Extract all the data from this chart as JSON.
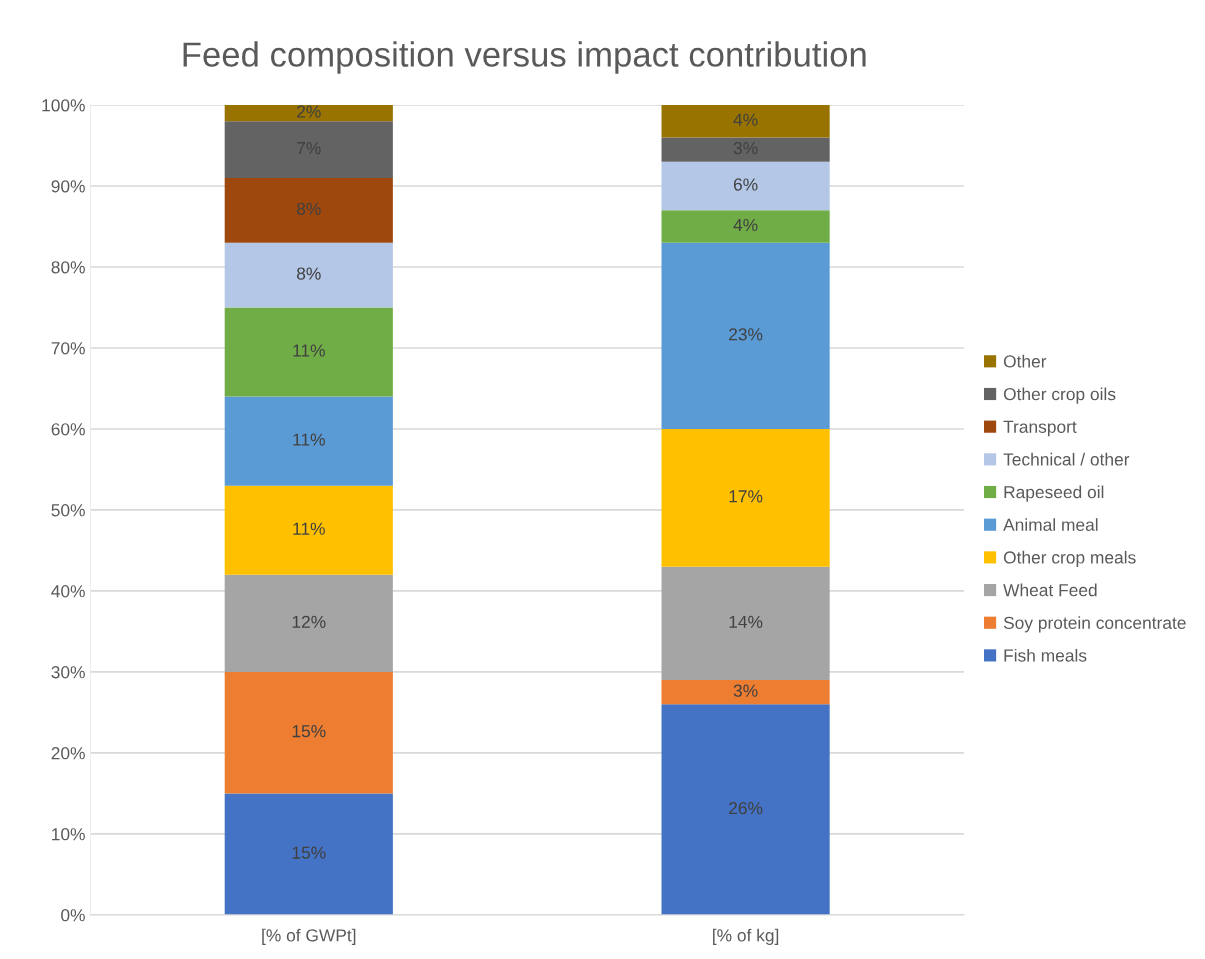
{
  "chart_data": {
    "type": "bar",
    "title": "Feed composition versus impact contribution",
    "categories": [
      "[% of GWPt]",
      "[% of kg]"
    ],
    "stacked": true,
    "series": [
      {
        "name": "Fish meals",
        "color": "#4472c4",
        "values": [
          15,
          26
        ],
        "value_labels": [
          "15%",
          "26%"
        ]
      },
      {
        "name": "Soy protein concentrate",
        "color": "#ed7d31",
        "values": [
          15,
          3
        ],
        "value_labels": [
          "15%",
          "3%"
        ]
      },
      {
        "name": "Wheat Feed",
        "color": "#a5a5a5",
        "values": [
          12,
          14
        ],
        "value_labels": [
          "12%",
          "14%"
        ]
      },
      {
        "name": "Other crop meals",
        "color": "#ffc000",
        "values": [
          11,
          17
        ],
        "value_labels": [
          "11%",
          "17%"
        ]
      },
      {
        "name": "Animal meal",
        "color": "#5b9bd5",
        "values": [
          11,
          23
        ],
        "value_labels": [
          "11%",
          "23%"
        ]
      },
      {
        "name": "Rapeseed oil",
        "color": "#70ad47",
        "values": [
          11,
          4
        ],
        "value_labels": [
          "11%",
          "4%"
        ]
      },
      {
        "name": "Technical / other",
        "color": "#b4c7e7",
        "values": [
          8,
          6
        ],
        "value_labels": [
          "8%",
          "6%"
        ]
      },
      {
        "name": "Transport",
        "color": "#9e480e",
        "values": [
          8,
          null
        ],
        "value_labels": [
          "8%",
          null
        ]
      },
      {
        "name": "Other crop oils",
        "color": "#636363",
        "values": [
          7,
          3
        ],
        "value_labels": [
          "7%",
          "3%"
        ]
      },
      {
        "name": "Other",
        "color": "#997300",
        "values": [
          2,
          4
        ],
        "value_labels": [
          "2%",
          "4%"
        ]
      }
    ],
    "ylim": [
      0,
      100
    ],
    "yticks": [
      {
        "value": 0,
        "label": "0%"
      },
      {
        "value": 10,
        "label": "10%"
      },
      {
        "value": 20,
        "label": "20%"
      },
      {
        "value": 30,
        "label": "30%"
      },
      {
        "value": 40,
        "label": "40%"
      },
      {
        "value": 50,
        "label": "50%"
      },
      {
        "value": 60,
        "label": "60%"
      },
      {
        "value": 70,
        "label": "70%"
      },
      {
        "value": 80,
        "label": "80%"
      },
      {
        "value": 90,
        "label": "90%"
      },
      {
        "value": 100,
        "label": "100%"
      }
    ],
    "grid": "y",
    "legend": "right"
  }
}
